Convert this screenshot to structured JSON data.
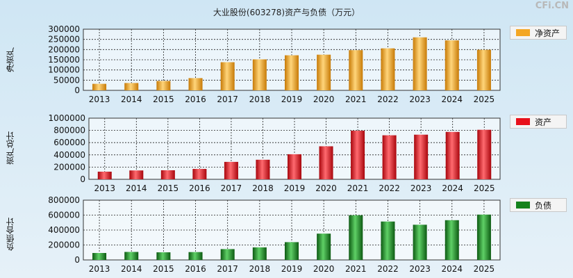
{
  "title": "大业股份(603278)资产与负债（万元）",
  "watermark": "CFi.CN",
  "colors": {
    "net_assets": "#f4a623",
    "assets": "#e8101a",
    "liabilities": "#15821c"
  },
  "chart_data": [
    {
      "type": "bar",
      "ylabel": "净资产",
      "legend": "净资产",
      "categories": [
        "2013",
        "2014",
        "2015",
        "2016",
        "2017",
        "2018",
        "2019",
        "2020",
        "2021",
        "2022",
        "2023",
        "2024",
        "2025"
      ],
      "values": [
        32000,
        36000,
        46000,
        60000,
        138000,
        152000,
        172000,
        175000,
        197000,
        206000,
        260000,
        245000,
        199000
      ],
      "ylim": [
        0,
        300000
      ],
      "yticks": [
        "0",
        "50000",
        "100000",
        "150000",
        "200000",
        "250000",
        "300000"
      ]
    },
    {
      "type": "bar",
      "ylabel": "资产总计",
      "legend": "资产",
      "categories": [
        "2013",
        "2014",
        "2015",
        "2016",
        "2017",
        "2018",
        "2019",
        "2020",
        "2021",
        "2022",
        "2023",
        "2024",
        "2025"
      ],
      "values": [
        125000,
        145000,
        148000,
        170000,
        285000,
        320000,
        410000,
        540000,
        795000,
        720000,
        730000,
        775000,
        810000
      ],
      "ylim": [
        0,
        1000000
      ],
      "yticks": [
        "0",
        "200000",
        "400000",
        "600000",
        "800000",
        "1000000"
      ]
    },
    {
      "type": "bar",
      "ylabel": "负债合计",
      "legend": "负债",
      "categories": [
        "2013",
        "2014",
        "2015",
        "2016",
        "2017",
        "2018",
        "2019",
        "2020",
        "2021",
        "2022",
        "2023",
        "2024",
        "2025"
      ],
      "values": [
        93000,
        107000,
        102000,
        105000,
        145000,
        168000,
        238000,
        352000,
        598000,
        514000,
        471000,
        532000,
        607000
      ],
      "ylim": [
        0,
        800000
      ],
      "yticks": [
        "0",
        "200000",
        "400000",
        "600000",
        "800000"
      ]
    }
  ]
}
